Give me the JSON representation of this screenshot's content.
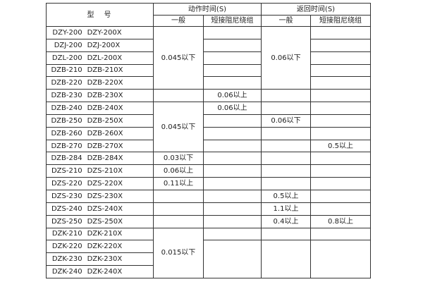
{
  "table": {
    "header": {
      "model_label": "型　号",
      "action_time": "动作时间(S)",
      "return_time": "返回时间(S)",
      "subcols": [
        "一般",
        "短接阻尼绕组",
        "一般",
        "短接阻尼绕组"
      ]
    },
    "columns_key": [
      "action-general",
      "action-damping",
      "return-general",
      "return-damping"
    ],
    "rows": [
      {
        "models": [
          "DZY-200",
          "DZY-200X"
        ],
        "cells": [
          {
            "col": 1,
            "text": "0.045以下",
            "rowspan": 5
          },
          {
            "col": 2,
            "text": ""
          },
          {
            "col": 3,
            "text": "0.06以下",
            "rowspan": 5
          },
          {
            "col": 4,
            "text": ""
          }
        ]
      },
      {
        "models": [
          "DZJ-200",
          "DZJ-200X"
        ],
        "cells": [
          {
            "col": 2,
            "text": ""
          },
          {
            "col": 4,
            "text": ""
          }
        ]
      },
      {
        "models": [
          "DZL-200",
          "DZL-200X"
        ],
        "cells": [
          {
            "col": 2,
            "text": ""
          },
          {
            "col": 4,
            "text": ""
          }
        ]
      },
      {
        "models": [
          "DZB-210",
          "DZB-210X"
        ],
        "cells": [
          {
            "col": 2,
            "text": ""
          },
          {
            "col": 4,
            "text": ""
          }
        ]
      },
      {
        "models": [
          "DZB-220",
          "DZB-220X"
        ],
        "cells": [
          {
            "col": 2,
            "text": ""
          },
          {
            "col": 4,
            "text": ""
          }
        ]
      },
      {
        "models": [
          "DZB-230",
          "DZB-230X"
        ],
        "cells": [
          {
            "col": 1,
            "text": ""
          },
          {
            "col": 2,
            "text": "0.06以上"
          },
          {
            "col": 3,
            "text": ""
          },
          {
            "col": 4,
            "text": ""
          }
        ]
      },
      {
        "models": [
          "DZB-240",
          "DZB-240X"
        ],
        "cells": [
          {
            "col": 1,
            "text": "0.045以下",
            "rowspan": 4
          },
          {
            "col": 2,
            "text": "0.06以上"
          },
          {
            "col": 3,
            "text": ""
          },
          {
            "col": 4,
            "text": ""
          }
        ]
      },
      {
        "models": [
          "DZB-250",
          "DZB-250X"
        ],
        "cells": [
          {
            "col": 2,
            "text": ""
          },
          {
            "col": 3,
            "text": "0.06以下"
          },
          {
            "col": 4,
            "text": ""
          }
        ]
      },
      {
        "models": [
          "DZB-260",
          "DZB-260X"
        ],
        "cells": [
          {
            "col": 2,
            "text": ""
          },
          {
            "col": 3,
            "text": ""
          },
          {
            "col": 4,
            "text": ""
          }
        ]
      },
      {
        "models": [
          "DZB-270",
          "DZB-270X"
        ],
        "cells": [
          {
            "col": 2,
            "text": ""
          },
          {
            "col": 3,
            "text": ""
          },
          {
            "col": 4,
            "text": "0.5以上"
          }
        ]
      },
      {
        "models": [
          "DZB-284",
          "DZB-284X"
        ],
        "cells": [
          {
            "col": 1,
            "text": "0.03以下"
          },
          {
            "col": 2,
            "text": ""
          },
          {
            "col": 3,
            "text": ""
          },
          {
            "col": 4,
            "text": ""
          }
        ]
      },
      {
        "models": [
          "DZS-210",
          "DZS-210X"
        ],
        "cells": [
          {
            "col": 1,
            "text": "0.06以上"
          },
          {
            "col": 2,
            "text": ""
          },
          {
            "col": 3,
            "text": ""
          },
          {
            "col": 4,
            "text": ""
          }
        ]
      },
      {
        "models": [
          "DZS-220",
          "DZS-220X"
        ],
        "cells": [
          {
            "col": 1,
            "text": "0.11以上"
          },
          {
            "col": 2,
            "text": ""
          },
          {
            "col": 3,
            "text": ""
          },
          {
            "col": 4,
            "text": ""
          }
        ]
      },
      {
        "models": [
          "DZS-230",
          "DZS-230X"
        ],
        "cells": [
          {
            "col": 1,
            "text": ""
          },
          {
            "col": 2,
            "text": ""
          },
          {
            "col": 3,
            "text": "0.5以上"
          },
          {
            "col": 4,
            "text": ""
          }
        ]
      },
      {
        "models": [
          "DZS-240",
          "DZS-240X"
        ],
        "cells": [
          {
            "col": 1,
            "text": ""
          },
          {
            "col": 2,
            "text": ""
          },
          {
            "col": 3,
            "text": "1.1以上"
          },
          {
            "col": 4,
            "text": ""
          }
        ]
      },
      {
        "models": [
          "DZS-250",
          "DZS-250X"
        ],
        "cells": [
          {
            "col": 1,
            "text": ""
          },
          {
            "col": 2,
            "text": ""
          },
          {
            "col": 3,
            "text": "0.4以上"
          },
          {
            "col": 4,
            "text": "0.8以上"
          }
        ]
      },
      {
        "models": [
          "DZK-210",
          "DZK-210X"
        ],
        "cells": [
          {
            "col": 1,
            "text": "0.015以下",
            "rowspan": 4
          },
          {
            "col": 2,
            "text": ""
          },
          {
            "col": 3,
            "text": ""
          },
          {
            "col": 4,
            "text": ""
          }
        ]
      },
      {
        "models": [
          "DZK-220",
          "DZK-220X"
        ],
        "cells": [
          {
            "col": 2,
            "text": "",
            "rowspan": 3
          },
          {
            "col": 3,
            "text": "",
            "rowspan": 3
          },
          {
            "col": 4,
            "text": "",
            "rowspan": 3
          }
        ]
      },
      {
        "models": [
          "DZK-230",
          "DZK-230X"
        ],
        "cells": []
      },
      {
        "models": [
          "DZK-240",
          "DZK-240X"
        ],
        "cells": []
      }
    ]
  }
}
